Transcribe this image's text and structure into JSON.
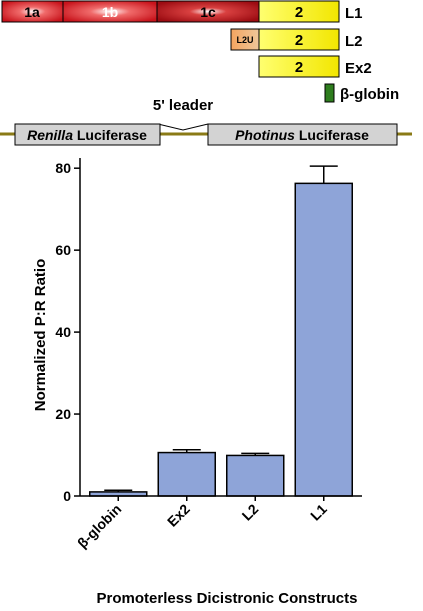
{
  "diagram": {
    "constructs": [
      {
        "name": "L1",
        "segments": [
          {
            "label": "1a",
            "color": "#e0262c"
          },
          {
            "label": "1b",
            "color": "#e0262c"
          },
          {
            "label": "1c",
            "color": "#e0262c"
          },
          {
            "label": "2",
            "color": "#fff200"
          }
        ]
      },
      {
        "name": "L2",
        "segments": [
          {
            "label": "L2U",
            "color": "#f4a460"
          },
          {
            "label": "2",
            "color": "#fff200"
          }
        ]
      },
      {
        "name": "Ex2",
        "segments": [
          {
            "label": "2",
            "color": "#fff200"
          }
        ]
      },
      {
        "name": "β-globin",
        "segments": [
          {
            "label": "",
            "color": "#2e7d1e"
          }
        ]
      }
    ],
    "leader_label": "5' leader",
    "renilla": {
      "italic": "Renilla",
      "rest": " Luciferase"
    },
    "photinus": {
      "italic": "Photinus",
      "rest": " Luciferase"
    },
    "line_color": "#8a7a16",
    "box_color": "#d3d3d3"
  },
  "chart_data": {
    "type": "bar",
    "categories": [
      "β-globin",
      "Ex2",
      "L2",
      "L1"
    ],
    "values": [
      1.0,
      10.6,
      9.9,
      76.3
    ],
    "errors": [
      0.4,
      0.7,
      0.5,
      4.2
    ],
    "title": "",
    "ylabel": "Normalized P:R Ratio",
    "xlabel": "Promoterless Dicistronic Constructs",
    "yticks": [
      0,
      20,
      40,
      60,
      80
    ],
    "ylim": [
      0,
      82
    ],
    "bar_color": "#8ea4d8",
    "grid": false
  }
}
